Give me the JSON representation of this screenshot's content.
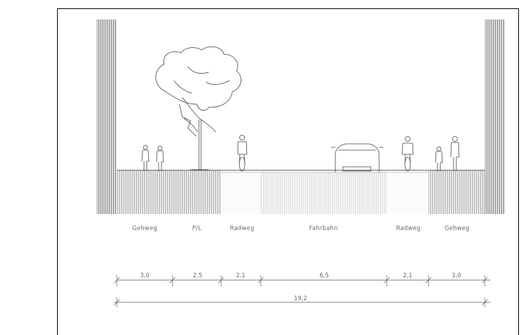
{
  "section_labels": [
    "Gehweg",
    "P/L",
    "Radweg",
    "Fahrbahn",
    "Radweg",
    "Gehweg"
  ],
  "dimensions": [
    "3,0",
    "2,5",
    "2,1",
    "6,5",
    "2,1",
    "3,0"
  ],
  "total_width": "19,2",
  "colors": {
    "stroke": "#333333",
    "hatch_dark": "#555555",
    "hatch_light": "#b5b5b5"
  }
}
